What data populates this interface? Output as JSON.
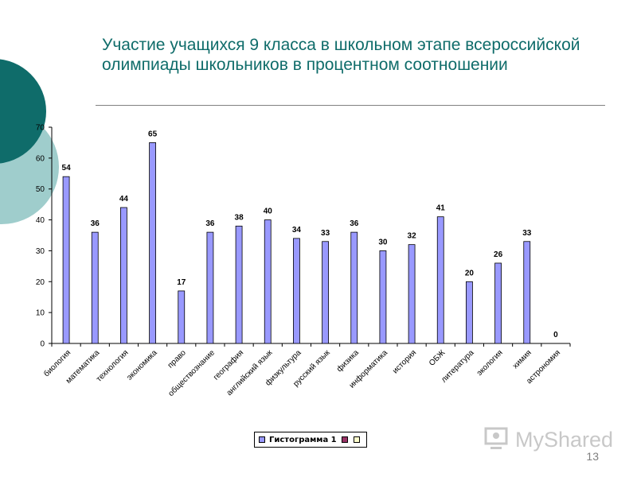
{
  "slide": {
    "title": "Участие учащихся 9 класса в школьном этапе всероссийской олимпиады школьников в процентном соотношении",
    "page_number": "13",
    "watermark": "MyShared",
    "colors": {
      "accent_dark": "#0f6c6a",
      "accent_light": "#9fcdcc",
      "title": "#0f6c6a"
    }
  },
  "chart_data": {
    "type": "bar",
    "categories": [
      "биология",
      "математика",
      "технология",
      "экономика",
      "право",
      "обществознание",
      "география",
      "английский язык",
      "физкультура",
      "русский язык",
      "физика",
      "информатика",
      "история",
      "ОБЖ",
      "литература",
      "экология",
      "химия",
      "астрономия"
    ],
    "series": [
      {
        "name": "Гистограмма 1",
        "values": [
          54,
          36,
          44,
          65,
          17,
          36,
          38,
          40,
          34,
          33,
          36,
          30,
          32,
          41,
          20,
          26,
          33,
          0
        ],
        "color": "#9999ff"
      }
    ],
    "yticks": [
      "0",
      "10",
      "20",
      "30",
      "40",
      "50",
      "60",
      "70"
    ],
    "ylim": [
      0,
      70
    ],
    "legend": {
      "position": "bottom",
      "entries": [
        "Гистограмма 1",
        "",
        ""
      ],
      "swatch_colors": [
        "#9999ff",
        "#993366",
        "#ffffcc"
      ]
    },
    "grid": false
  }
}
